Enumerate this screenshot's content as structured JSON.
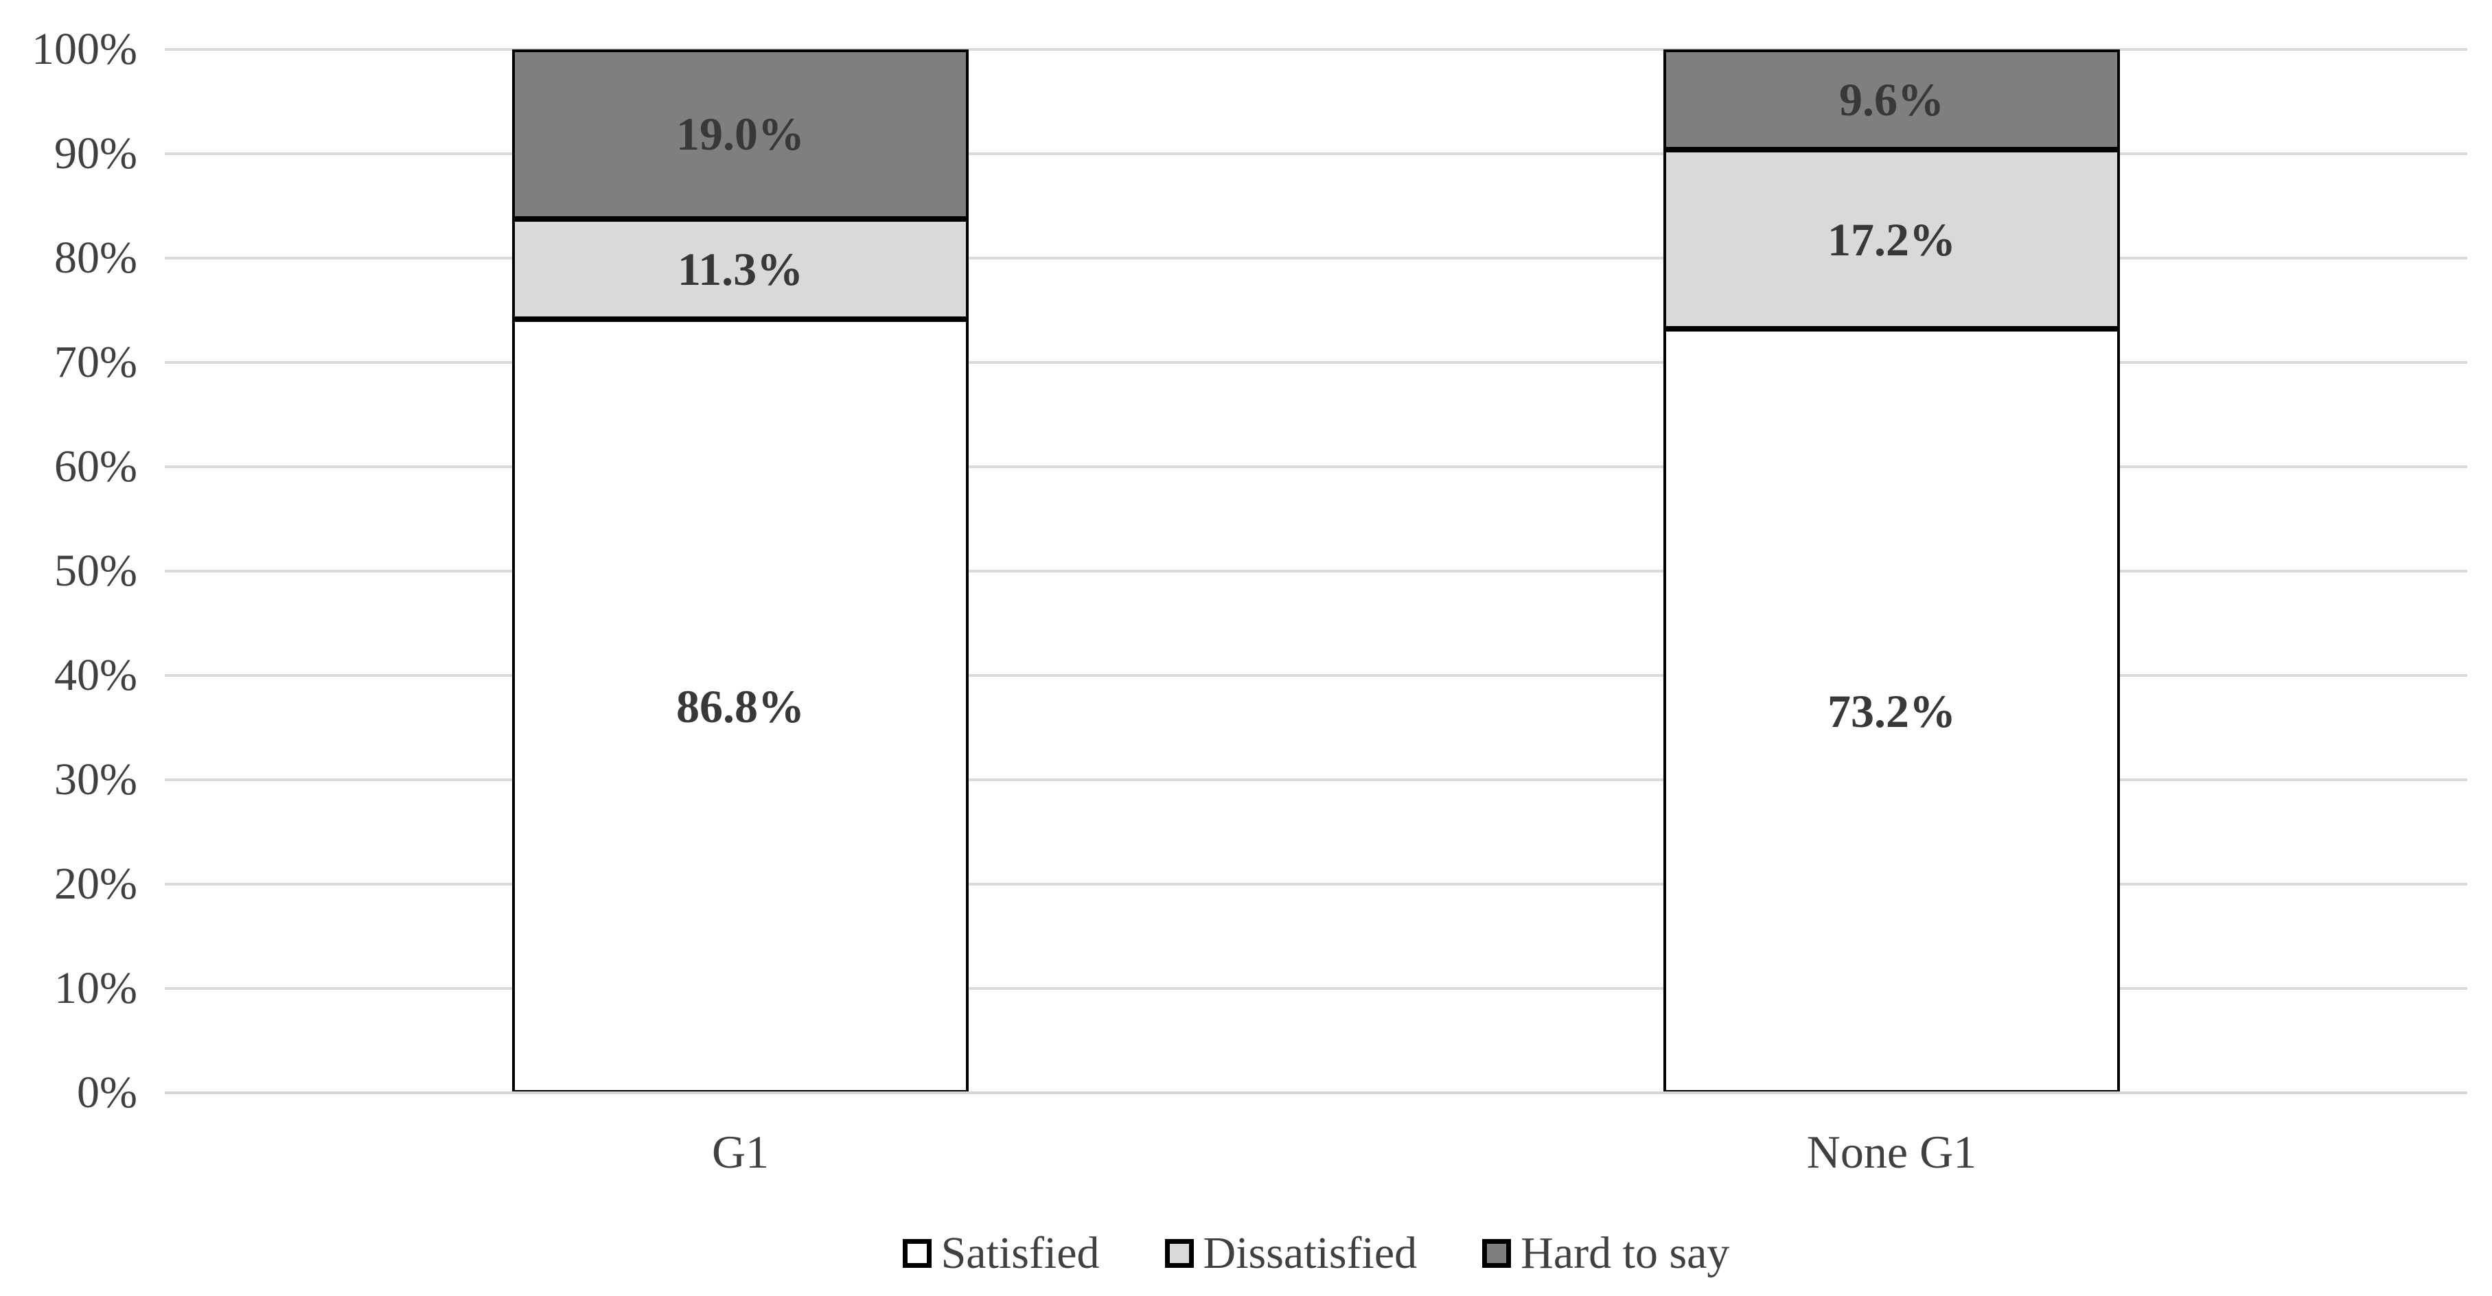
{
  "chart_data": {
    "type": "bar",
    "subtype": "percent-stacked-column",
    "title": "",
    "categories": [
      "G1",
      "None G1"
    ],
    "series": [
      {
        "name": "Satisfied",
        "color": "#FFFFFF",
        "values": [
          86.8,
          73.2
        ],
        "labels": [
          "86.8%",
          "73.2%"
        ]
      },
      {
        "name": "Dissatisfied",
        "color": "#D9D9D9",
        "values": [
          11.3,
          17.2
        ],
        "labels": [
          "11.3%",
          "17.2%"
        ]
      },
      {
        "name": "Hard to say",
        "color": "#7F7F7F",
        "values": [
          19.0,
          9.6
        ],
        "labels": [
          "19.0%",
          "9.6%"
        ]
      }
    ],
    "y_axis": {
      "min": 0,
      "max": 100,
      "step": 10,
      "ticks": [
        "0%",
        "10%",
        "20%",
        "30%",
        "40%",
        "50%",
        "60%",
        "70%",
        "80%",
        "90%",
        "100%"
      ]
    },
    "grid": true,
    "legend_position": "bottom",
    "legend": [
      "Satisfied",
      "Dissatisfied",
      "Hard to say"
    ],
    "palette": {
      "segment_border": "#000000",
      "gridline": "#D9D9D9",
      "axis_line": "#D6D6D6",
      "tick_text": "#404040",
      "category_text": "#404040",
      "label_text": "#383838",
      "legend_text": "#404040",
      "background": "#FFFFFF"
    }
  }
}
